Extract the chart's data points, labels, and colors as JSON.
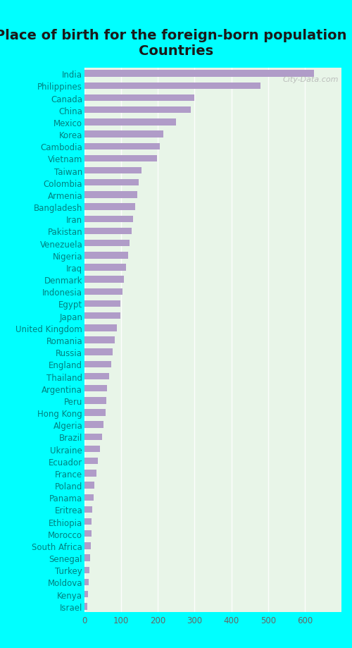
{
  "title": "Place of birth for the foreign-born population -\nCountries",
  "countries": [
    "India",
    "Philippines",
    "Canada",
    "China",
    "Mexico",
    "Korea",
    "Cambodia",
    "Vietnam",
    "Taiwan",
    "Colombia",
    "Armenia",
    "Bangladesh",
    "Iran",
    "Pakistan",
    "Venezuela",
    "Nigeria",
    "Iraq",
    "Denmark",
    "Indonesia",
    "Egypt",
    "Japan",
    "United Kingdom",
    "Romania",
    "Russia",
    "England",
    "Thailand",
    "Argentina",
    "Peru",
    "Hong Kong",
    "Algeria",
    "Brazil",
    "Ukraine",
    "Ecuador",
    "France",
    "Poland",
    "Panama",
    "Eritrea",
    "Ethiopia",
    "Morocco",
    "South Africa",
    "Senegal",
    "Turkey",
    "Moldova",
    "Kenya",
    "Israel"
  ],
  "values": [
    625,
    480,
    300,
    290,
    250,
    215,
    205,
    198,
    155,
    148,
    143,
    138,
    133,
    128,
    123,
    118,
    113,
    108,
    103,
    98,
    97,
    88,
    82,
    77,
    72,
    67,
    62,
    60,
    57,
    52,
    47,
    42,
    37,
    32,
    27,
    25,
    22,
    20,
    19,
    17,
    15,
    14,
    12,
    10,
    8
  ],
  "bar_color": "#b09cc8",
  "background_color": "#00ffff",
  "plot_bg_color": "#e8f5e8",
  "title_color": "#1a1a1a",
  "label_color": "#008080",
  "tick_color": "#666666",
  "xlim": [
    0,
    700
  ],
  "xticks": [
    0,
    100,
    200,
    300,
    400,
    500,
    600
  ],
  "title_fontsize": 14,
  "label_fontsize": 8.5,
  "tick_fontsize": 8.5,
  "watermark": "City-Data.com",
  "bar_height": 0.55
}
